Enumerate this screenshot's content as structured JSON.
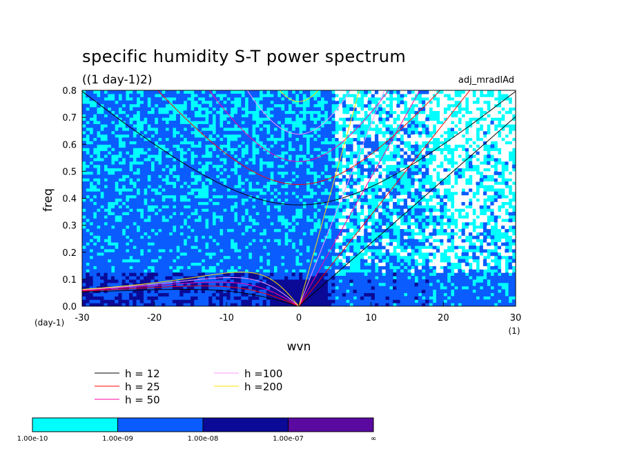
{
  "chart_data": {
    "type": "heatmap",
    "title": "specific humidity S-T power spectrum",
    "subtitle": "((1 day-1)2)",
    "run_label": "adj_mradlAd",
    "xlabel": "wvn",
    "ylabel": "freq",
    "x_unit_label": "(1)",
    "y_unit_label": "(day-1)",
    "xlim": [
      -30,
      30
    ],
    "ylim": [
      0,
      0.8
    ],
    "x_ticks": [
      -30,
      -20,
      -10,
      0,
      10,
      20,
      30
    ],
    "x_tick_labels": [
      "-30",
      "-20",
      "-10",
      "0",
      "10",
      "20",
      "30"
    ],
    "y_ticks": [
      0.0,
      0.1,
      0.2,
      0.3,
      0.4,
      0.5,
      0.6,
      0.7,
      0.8
    ],
    "y_tick_labels": [
      "0.0",
      "0.1",
      "0.2",
      "0.3",
      "0.4",
      "0.5",
      "0.6",
      "0.7",
      "0.8"
    ],
    "colorbar": {
      "levels": [
        "1.00e-10",
        "1.00e-09",
        "1.00e-08",
        "1.00e-07",
        "∞"
      ],
      "colors": [
        "#00ffff",
        "#0a5cff",
        "#0a0a96",
        "#5a0aa0"
      ]
    },
    "dispersion_series": [
      {
        "name": "h = 12",
        "h": 12,
        "color": "#000000"
      },
      {
        "name": "h = 25",
        "h": 25,
        "color": "#ff0000"
      },
      {
        "name": "h = 50",
        "h": 50,
        "color": "#ff00a0"
      },
      {
        "name": "h =100",
        "h": 100,
        "color": "#ff96ff"
      },
      {
        "name": "h =200",
        "h": 200,
        "color": "#ffe000"
      }
    ],
    "legend_placement": "bottom-left"
  }
}
